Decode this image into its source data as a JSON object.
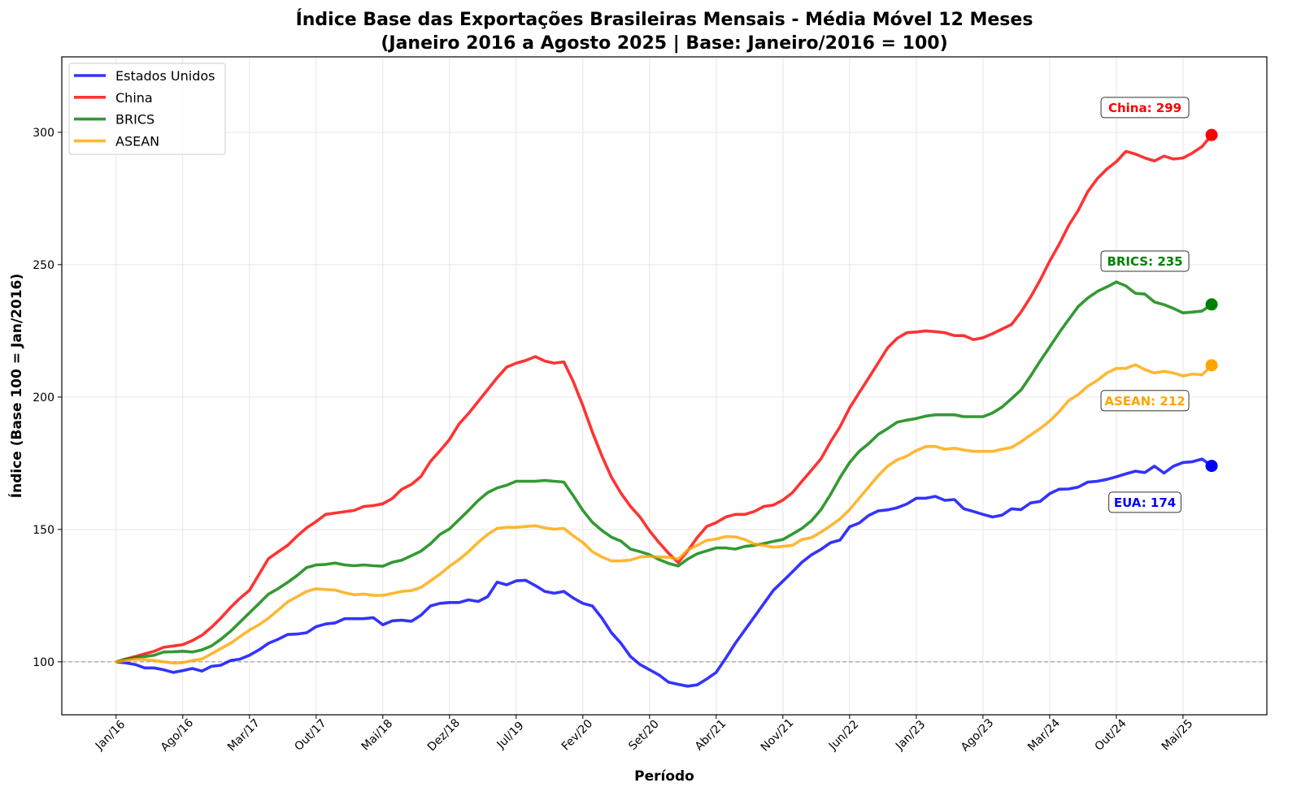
{
  "chart_data": {
    "type": "line",
    "title": "Índice Base das Exportações Brasileiras Mensais - Média Móvel 12 Meses",
    "subtitle": "(Janeiro 2016 a Agosto 2025 | Base: Janeiro/2016 = 100)",
    "xlabel": "Período",
    "ylabel": "Índice (Base 100 = Jan/2016)",
    "x_unit": "month index from Jan/2016 (0) to Aug/2025 (115)",
    "xlim": [
      -5.7,
      120.8
    ],
    "ylim": [
      80,
      328.5
    ],
    "grid": true,
    "legend_position": "top-left",
    "reference_line": 100,
    "x_ticks": [
      {
        "month": 0,
        "label": "Jan/16"
      },
      {
        "month": 7,
        "label": "Ago/16"
      },
      {
        "month": 14,
        "label": "Mar/17"
      },
      {
        "month": 21,
        "label": "Out/17"
      },
      {
        "month": 28,
        "label": "Mai/18"
      },
      {
        "month": 35,
        "label": "Dez/18"
      },
      {
        "month": 42,
        "label": "Jul/19"
      },
      {
        "month": 49,
        "label": "Fev/20"
      },
      {
        "month": 56,
        "label": "Set/20"
      },
      {
        "month": 63,
        "label": "Abr/21"
      },
      {
        "month": 70,
        "label": "Nov/21"
      },
      {
        "month": 77,
        "label": "Jun/22"
      },
      {
        "month": 84,
        "label": "Jan/23"
      },
      {
        "month": 91,
        "label": "Ago/23"
      },
      {
        "month": 98,
        "label": "Mar/24"
      },
      {
        "month": 105,
        "label": "Out/24"
      },
      {
        "month": 112,
        "label": "Mai/25"
      }
    ],
    "y_ticks": [
      100,
      150,
      200,
      250,
      300
    ],
    "series": [
      {
        "name": "Estados Unidos",
        "color": "#0000ff",
        "end_label": "EUA: 174",
        "label_offset": -13.6,
        "values": [
          100,
          99.6,
          99,
          97.7,
          97.7,
          97,
          96,
          96.7,
          97.5,
          96.5,
          98.3,
          98.7,
          100.5,
          101,
          102.5,
          104.5,
          107,
          108.5,
          110.3,
          110.5,
          111,
          113.3,
          114.3,
          114.7,
          116.3,
          116.3,
          116.3,
          116.7,
          114,
          115.5,
          115.7,
          115.3,
          117.6,
          121.1,
          122.1,
          122.4,
          122.4,
          123.4,
          122.8,
          124.6,
          130.1,
          129.1,
          130.6,
          130.8,
          128.8,
          126.6,
          125.9,
          126.6,
          124.1,
          122.1,
          121.1,
          116.5,
          111,
          107,
          102,
          99,
          97,
          95,
          92.3,
          91.5,
          90.8,
          91.3,
          93.5,
          96,
          101.4,
          107,
          112,
          117,
          122,
          127,
          130.5,
          134,
          137.6,
          140.4,
          142.5,
          145,
          146,
          151,
          152.4,
          155.3,
          157,
          157.4,
          158.2,
          159.6,
          161.8,
          161.8,
          162.5,
          161,
          161.3,
          157.8,
          156.8,
          155.7,
          154.7,
          155.4,
          157.8,
          157.5,
          160,
          160.6,
          163.5,
          165.2,
          165.3,
          166,
          167.9,
          168.2,
          168.9,
          169.9,
          171,
          172,
          171.5,
          173.9,
          171.3,
          173.9,
          175.3,
          175.6,
          176.6,
          174
        ]
      },
      {
        "name": "China",
        "color": "#ff0000",
        "end_label": "China: 299",
        "label_offset": 10.5,
        "values": [
          100,
          101,
          102,
          103,
          104,
          105.5,
          106,
          106.5,
          108,
          110,
          113,
          116.5,
          120.5,
          124,
          127,
          133,
          139,
          141.5,
          144,
          147.5,
          150.6,
          153,
          155.7,
          156.2,
          156.7,
          157.2,
          158.7,
          159,
          159.7,
          161.7,
          165.2,
          167,
          170,
          175.7,
          179.7,
          184,
          189.8,
          193.8,
          198.3,
          202.8,
          207.3,
          211.3,
          212.8,
          213.8,
          215.3,
          213.6,
          212.8,
          213.3,
          205.8,
          196.8,
          186.8,
          177.7,
          169.7,
          163.7,
          158.7,
          154.7,
          149.5,
          145,
          141,
          137.5,
          141.9,
          146.9,
          151.1,
          152.6,
          154.7,
          155.7,
          155.7,
          156.8,
          158.7,
          159.2,
          161.1,
          163.9,
          168.2,
          172.4,
          176.7,
          183.1,
          188.8,
          195.9,
          201.6,
          207.2,
          212.9,
          218.6,
          222.2,
          224.3,
          224.6,
          225,
          224.7,
          224.3,
          223.2,
          223.2,
          221.7,
          222.4,
          223.9,
          225.7,
          227.4,
          232.1,
          237.8,
          244.2,
          251.3,
          257.7,
          264.8,
          270.5,
          277.6,
          282.5,
          286.1,
          288.9,
          292.8,
          291.8,
          290.3,
          289.2,
          291,
          289.9,
          290.3,
          292.2,
          294.6,
          299
        ]
      },
      {
        "name": "BRICS",
        "color": "#008000",
        "end_label": "BRICS: 235",
        "label_offset": 16.5,
        "values": [
          100,
          101,
          101.5,
          102,
          102.5,
          103.7,
          103.8,
          104,
          103.7,
          104.5,
          106,
          108.5,
          111.5,
          115,
          118.5,
          122,
          125.6,
          127.6,
          130,
          132.6,
          135.6,
          136.6,
          136.8,
          137.3,
          136.6,
          136.3,
          136.6,
          136.3,
          136.1,
          137.6,
          138.4,
          140.1,
          141.8,
          144.6,
          148.1,
          150.2,
          153.7,
          157.2,
          160.9,
          163.9,
          165.7,
          166.7,
          168.2,
          168.2,
          168.2,
          168.5,
          168.2,
          167.9,
          162.7,
          157.2,
          152.7,
          149.6,
          147.1,
          145.6,
          142.6,
          141.6,
          140.5,
          138.6,
          137.2,
          136.2,
          138.8,
          140.8,
          141.9,
          143,
          143,
          142.6,
          143.6,
          144,
          144.7,
          145.5,
          146.2,
          148.3,
          150.4,
          153.3,
          157.5,
          163.2,
          169.6,
          175.3,
          179.5,
          182.4,
          185.9,
          188.1,
          190.5,
          191.3,
          191.9,
          192.8,
          193.3,
          193.3,
          193.3,
          192.6,
          192.6,
          192.6,
          194,
          196.2,
          199.4,
          202.7,
          208,
          213.6,
          218.9,
          224.3,
          229.3,
          234.2,
          237.4,
          239.9,
          241.6,
          243.5,
          242,
          239.2,
          238.9,
          235.9,
          234.9,
          233.5,
          231.8,
          232.1,
          232.5,
          235
        ]
      },
      {
        "name": "ASEAN",
        "color": "#ffa500",
        "end_label": "ASEAN: 212",
        "label_offset": -13.2,
        "values": [
          100,
          100.5,
          101,
          100.8,
          100.5,
          100,
          99.5,
          99.7,
          100.5,
          101,
          103,
          105,
          107,
          109.5,
          112,
          114,
          116.5,
          119.5,
          122.6,
          124.6,
          126.6,
          127.6,
          127.3,
          127.1,
          126.1,
          125.3,
          125.6,
          125.1,
          125.1,
          125.8,
          126.6,
          126.9,
          128.1,
          130.6,
          133.1,
          136.1,
          138.6,
          141.6,
          145.1,
          148.1,
          150.4,
          150.8,
          150.8,
          151.1,
          151.4,
          150.6,
          150.1,
          150.4,
          147.6,
          145.1,
          141.6,
          139.6,
          138.1,
          138.1,
          138.4,
          139.6,
          139.8,
          139.6,
          139.5,
          138.8,
          142.2,
          144,
          145.9,
          146.4,
          147.3,
          147.2,
          146.2,
          144.5,
          144,
          143.3,
          143.6,
          144,
          146.2,
          146.9,
          149,
          151.4,
          154,
          157.5,
          161.8,
          166,
          170.3,
          173.9,
          176.3,
          177.7,
          179.8,
          181.3,
          181.4,
          180.3,
          180.7,
          180,
          179.5,
          179.5,
          179.5,
          180.3,
          181,
          183.1,
          185.7,
          188.1,
          190.9,
          194.5,
          198.7,
          200.9,
          204.1,
          206.3,
          209.1,
          210.8,
          210.8,
          212.2,
          210.4,
          209.1,
          209.7,
          209.1,
          208,
          208.7,
          208.4,
          212
        ]
      }
    ]
  }
}
